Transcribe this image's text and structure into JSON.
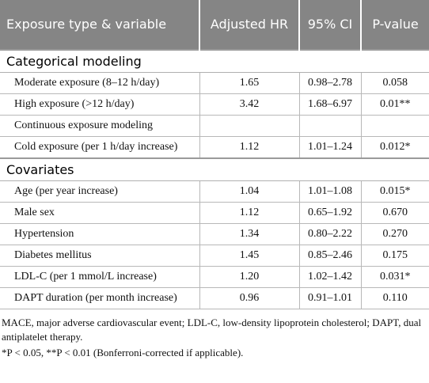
{
  "table": {
    "header": [
      "Exposure type & variable",
      "Adjusted HR",
      "95% CI",
      "P-value"
    ],
    "sections": [
      {
        "title": "Categorical modeling",
        "rows": [
          [
            "Moderate exposure (8–12 h/day)",
            "1.65",
            "0.98–2.78",
            "0.058"
          ],
          [
            "High exposure (>12 h/day)",
            "3.42",
            "1.68–6.97",
            "0.01**"
          ],
          [
            "Continuous exposure modeling"
          ],
          [
            "Cold exposure (per 1 h/day increase)",
            "1.12",
            "1.01–1.24",
            "0.012*"
          ]
        ]
      },
      {
        "title": "Covariates",
        "rows": [
          [
            "Age (per year increase)",
            "1.04",
            "1.01–1.08",
            "0.015*"
          ],
          [
            "Male sex",
            "1.12",
            "0.65–1.92",
            "0.670"
          ],
          [
            "Hypertension",
            "1.34",
            "0.80–2.22",
            "0.270"
          ],
          [
            "Diabetes mellitus",
            "1.45",
            "0.85–2.46",
            "0.175"
          ],
          [
            "LDL-C (per 1 mmol/L increase)",
            "1.20",
            "1.02–1.42",
            "0.031*"
          ],
          [
            "DAPT duration (per month increase)",
            "0.96",
            "0.91–1.01",
            "0.110"
          ]
        ]
      }
    ]
  },
  "footnotes": [
    "MACE, major adverse cardiovascular event; LDL-C, low-density lipoprotein cholesterol; DAPT, dual antiplatelet therapy.",
    "*P < 0.05, **P < 0.01 (Bonferroni-corrected if applicable)."
  ]
}
